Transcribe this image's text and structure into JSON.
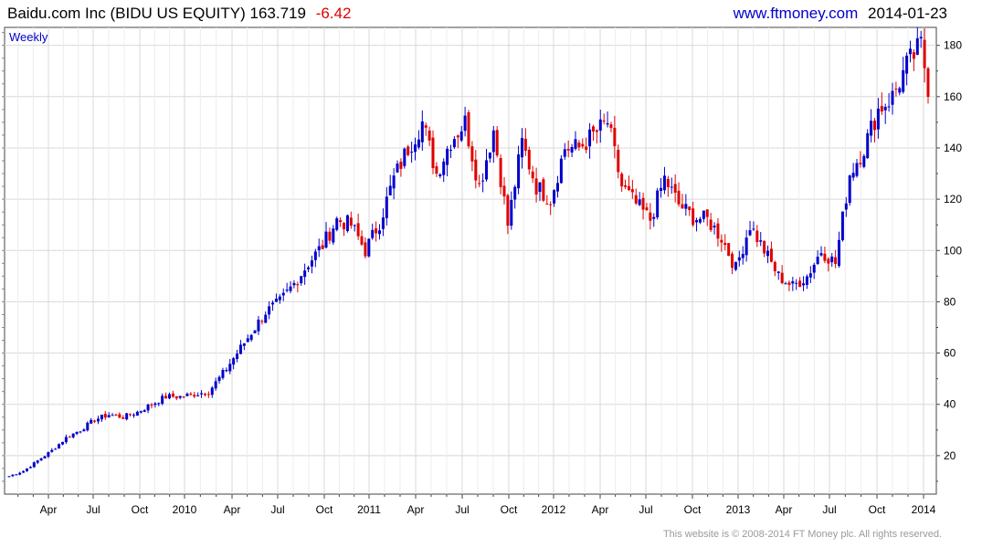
{
  "header": {
    "name": "Baidu.com Inc",
    "symbol": "(BIDU US EQUITY)",
    "price": "163.719",
    "change": "-6.42",
    "site": "www.ftmoney.com",
    "date": "2014-01-23"
  },
  "footer": {
    "copyright": "This website is © 2008-2014 FT Money plc. All rights reserved."
  },
  "colors": {
    "up": "#0000cc",
    "down": "#e00000",
    "grid": "#d8d8d8"
  },
  "chart_data": {
    "type": "candlestick",
    "frequency": "Weekly",
    "ylim": [
      5,
      187
    ],
    "y_ticks": [
      20,
      40,
      60,
      80,
      100,
      120,
      140,
      160,
      180
    ],
    "x_ticks": [
      "Apr",
      "Jul",
      "Oct",
      "2010",
      "Apr",
      "Jul",
      "Oct",
      "2011",
      "Apr",
      "Jul",
      "Oct",
      "2012",
      "Apr",
      "Jul",
      "Oct",
      "2013",
      "Apr",
      "Jul",
      "Oct",
      "2014"
    ],
    "grid": true,
    "anchors": [
      [
        0,
        12
      ],
      [
        4,
        14
      ],
      [
        8,
        18
      ],
      [
        12,
        22
      ],
      [
        16,
        27
      ],
      [
        20,
        30
      ],
      [
        24,
        34
      ],
      [
        28,
        36
      ],
      [
        32,
        35
      ],
      [
        36,
        37
      ],
      [
        40,
        40
      ],
      [
        44,
        43
      ],
      [
        48,
        43
      ],
      [
        52,
        44
      ],
      [
        56,
        45
      ],
      [
        60,
        52
      ],
      [
        64,
        60
      ],
      [
        68,
        68
      ],
      [
        72,
        76
      ],
      [
        76,
        80
      ],
      [
        80,
        87
      ],
      [
        84,
        95
      ],
      [
        88,
        102
      ],
      [
        92,
        112
      ],
      [
        96,
        110
      ],
      [
        100,
        100
      ],
      [
        104,
        111
      ],
      [
        108,
        128
      ],
      [
        112,
        140
      ],
      [
        116,
        150
      ],
      [
        120,
        130
      ],
      [
        124,
        143
      ],
      [
        128,
        150
      ],
      [
        132,
        125
      ],
      [
        136,
        147
      ],
      [
        140,
        110
      ],
      [
        144,
        142
      ],
      [
        148,
        125
      ],
      [
        152,
        120
      ],
      [
        156,
        140
      ],
      [
        160,
        140
      ],
      [
        164,
        145
      ],
      [
        168,
        150
      ],
      [
        172,
        125
      ],
      [
        176,
        118
      ],
      [
        180,
        112
      ],
      [
        184,
        128
      ],
      [
        188,
        118
      ],
      [
        192,
        113
      ],
      [
        196,
        112
      ],
      [
        200,
        105
      ],
      [
        204,
        93
      ],
      [
        208,
        110
      ],
      [
        212,
        100
      ],
      [
        216,
        90
      ],
      [
        220,
        86
      ],
      [
        224,
        90
      ],
      [
        228,
        100
      ],
      [
        232,
        95
      ],
      [
        236,
        130
      ],
      [
        240,
        140
      ],
      [
        244,
        155
      ],
      [
        248,
        160
      ],
      [
        252,
        172
      ],
      [
        256,
        180
      ],
      [
        258,
        164
      ]
    ]
  }
}
